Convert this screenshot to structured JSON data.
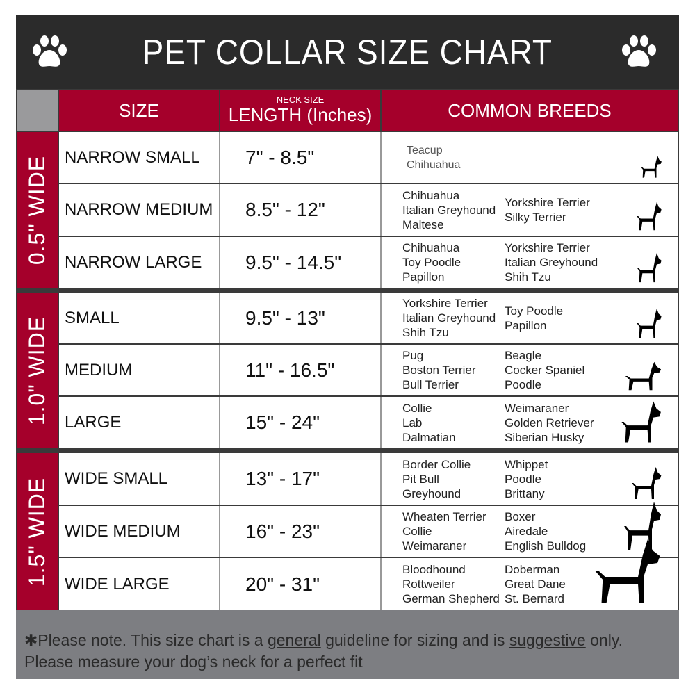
{
  "title": "PET COLLAR SIZE CHART",
  "icons": {
    "left": "paw-icon",
    "right": "paw-icon"
  },
  "columns": {
    "size": "SIZE",
    "length_small": "NECK SIZE",
    "length": "LENGTH (Inches)",
    "breeds": "COMMON BREEDS"
  },
  "colors": {
    "header": "#2b2b2b",
    "accent": "#a5002b",
    "footer": "#7d7e82"
  },
  "groups": [
    {
      "label": "0.5\" WIDE"
    },
    {
      "label": "1.0\" WIDE"
    },
    {
      "label": "1.5\" WIDE"
    }
  ],
  "rows": [
    {
      "size": "NARROW SMALL",
      "length": "7\" - 8.5\"",
      "col1": [
        "Teacup",
        "Chihuahua"
      ],
      "col2": [],
      "icon": "yorkie-silhouette-icon"
    },
    {
      "size": "NARROW MEDIUM",
      "length": "8.5\" - 12\"",
      "col1": [
        "Chihuahua",
        "Italian Greyhound",
        "Maltese"
      ],
      "col2": [
        "Yorkshire Terrier",
        "Silky Terrier"
      ],
      "icon": "chihuahua-silhouette-icon"
    },
    {
      "size": "NARROW LARGE",
      "length": "9.5\" - 14.5\"",
      "col1": [
        "Chihuahua",
        "Toy Poodle",
        "Papillon"
      ],
      "col2": [
        "Yorkshire Terrier",
        "Italian Greyhound",
        "Shih Tzu"
      ],
      "icon": "pomeranian-silhouette-icon"
    },
    {
      "size": "SMALL",
      "length": "9.5\" - 13\"",
      "col1": [
        "Yorkshire Terrier",
        "Italian Greyhound",
        "Shih Tzu"
      ],
      "col2": [
        "Toy Poodle",
        "Papillon"
      ],
      "icon": "pomeranian-silhouette-icon"
    },
    {
      "size": "MEDIUM",
      "length": "11\" - 16.5\"",
      "col1": [
        "Pug",
        "Boston Terrier",
        "Bull Terrier"
      ],
      "col2": [
        "Beagle",
        "Cocker Spaniel",
        "Poodle"
      ],
      "icon": "dachshund-silhouette-icon"
    },
    {
      "size": "LARGE",
      "length": "15\" - 24\"",
      "col1": [
        "Collie",
        "Lab",
        "Dalmatian"
      ],
      "col2": [
        "Weimaraner",
        "Golden Retriever",
        "Siberian Husky"
      ],
      "icon": "shepherd-silhouette-icon"
    },
    {
      "size": "WIDE SMALL",
      "length": "13\" - 17\"",
      "col1": [
        "Border Collie",
        "Pit Bull",
        "Greyhound"
      ],
      "col2": [
        "Whippet",
        "Poodle",
        "Brittany"
      ],
      "icon": "bulldog-silhouette-icon"
    },
    {
      "size": "WIDE MEDIUM",
      "length": "16\" - 23\"",
      "col1": [
        "Wheaten Terrier",
        "Collie",
        "Weimaraner"
      ],
      "col2": [
        "Boxer",
        "Airedale",
        "English Bulldog"
      ],
      "icon": "pitbull-silhouette-icon"
    },
    {
      "size": "WIDE LARGE",
      "length": "20\" - 31\"",
      "col1": [
        "Bloodhound",
        "Rottweiler",
        "German Shepherd"
      ],
      "col2": [
        "Doberman",
        "Great Dane",
        "St. Bernard"
      ],
      "icon": "doberman-silhouette-icon"
    }
  ],
  "footer": {
    "star": "✱",
    "part1": "Please note. This size chart is a ",
    "general": "general",
    "part2": " guideline for sizing and is ",
    "suggestive": "suggestive",
    "part3": " only.",
    "line2": "Please measure your dog’s neck for a perfect fit"
  }
}
